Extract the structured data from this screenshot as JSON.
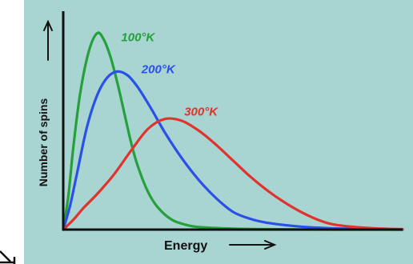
{
  "chart_data": {
    "type": "line",
    "xlabel": "Energy",
    "ylabel": "Number of spins",
    "xlim": [
      0,
      10
    ],
    "ylim": [
      0,
      1
    ],
    "grid": false,
    "legend": "inline labels near curve peaks",
    "series": [
      {
        "name": "100°K",
        "color": "#26a03a",
        "x": [
          0,
          0.15,
          0.3,
          0.5,
          0.75,
          1.0,
          1.2,
          1.4,
          1.6,
          1.8,
          2.0,
          2.2,
          2.5,
          2.8,
          3.2,
          3.6,
          4.0,
          5.0,
          6.0,
          8.0,
          10.0
        ],
        "y": [
          0.0,
          0.17,
          0.42,
          0.69,
          0.9,
          0.994,
          0.96,
          0.87,
          0.74,
          0.59,
          0.44,
          0.32,
          0.19,
          0.11,
          0.05,
          0.025,
          0.013,
          0.005,
          0.002,
          0.0,
          0.0
        ]
      },
      {
        "name": "200°K",
        "color": "#2b50e8",
        "x": [
          0,
          0.2,
          0.4,
          0.7,
          1.0,
          1.3,
          1.6,
          1.9,
          2.2,
          2.6,
          3.0,
          3.5,
          4.0,
          4.5,
          5.0,
          5.5,
          6.0,
          7.0,
          8.0,
          9.0,
          10.0
        ],
        "y": [
          0.0,
          0.12,
          0.28,
          0.52,
          0.68,
          0.77,
          0.8,
          0.78,
          0.72,
          0.61,
          0.49,
          0.36,
          0.25,
          0.16,
          0.09,
          0.055,
          0.035,
          0.015,
          0.006,
          0.002,
          0.0
        ]
      },
      {
        "name": "300°K",
        "color": "#e0332e",
        "x": [
          0,
          0.3,
          0.6,
          1.0,
          1.5,
          2.0,
          2.5,
          3.0,
          3.5,
          4.0,
          4.5,
          5.0,
          5.5,
          6.0,
          6.5,
          7.0,
          7.5,
          8.0,
          9.0,
          10.0
        ],
        "y": [
          0.0,
          0.05,
          0.11,
          0.18,
          0.28,
          0.4,
          0.51,
          0.56,
          0.55,
          0.5,
          0.43,
          0.35,
          0.27,
          0.2,
          0.14,
          0.09,
          0.05,
          0.025,
          0.008,
          0.002
        ]
      }
    ]
  },
  "colors": {
    "background": "#a8d4d1",
    "axis": "#111111",
    "text": "#111111"
  }
}
